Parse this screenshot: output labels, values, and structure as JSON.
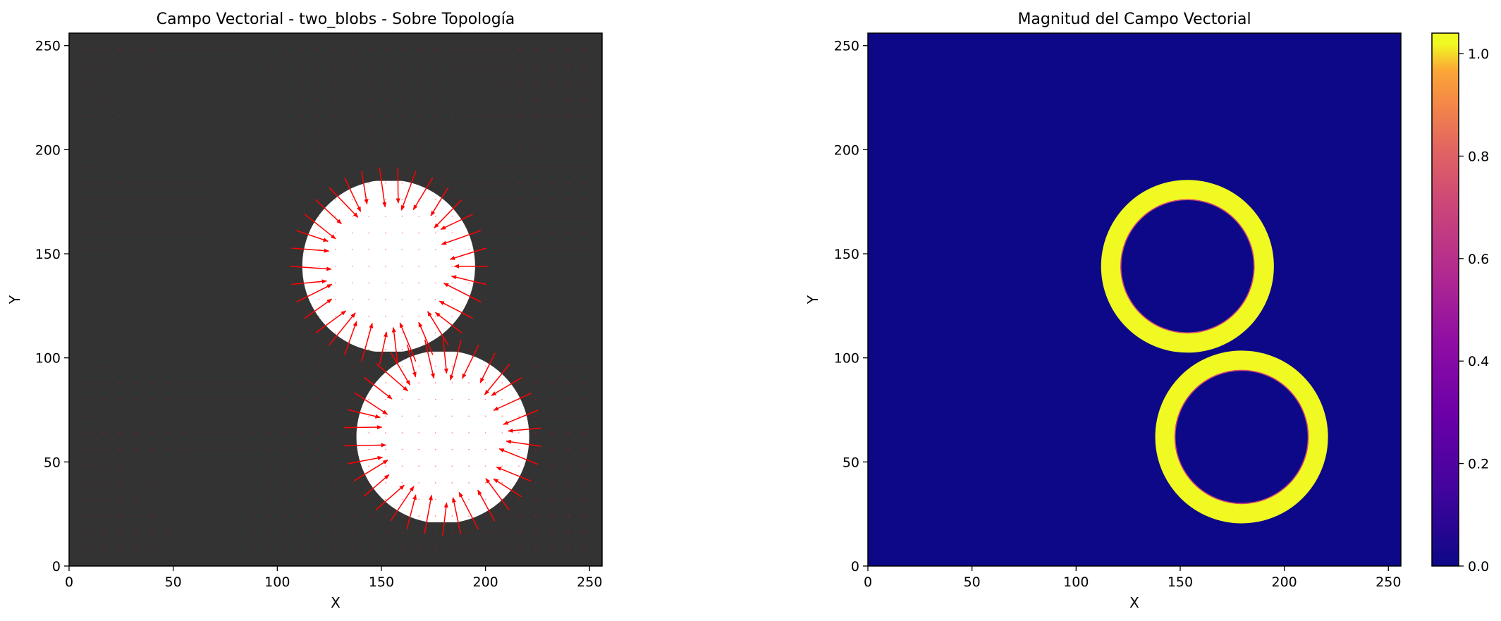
{
  "chart_data": [
    {
      "type": "quiver",
      "title": "Campo Vectorial - two_blobs - Sobre Topología",
      "xlabel": "X",
      "ylabel": "Y",
      "xlim": [
        0,
        256
      ],
      "ylim": [
        0,
        256
      ],
      "xticks": [
        "0",
        "50",
        "100",
        "150",
        "200",
        "250"
      ],
      "yticks": [
        "0",
        "50",
        "100",
        "150",
        "200",
        "250"
      ],
      "background_color": "#333333",
      "arrow_color": "#ff0000",
      "blob_color": "#ffffff",
      "blobs": [
        {
          "cx": 153.5,
          "cy": 144,
          "r": 41.5,
          "flat_top": 185,
          "flat_bottom": 103
        },
        {
          "cx": 179.5,
          "cy": 62,
          "r": 41.5,
          "flat_top": 103,
          "flat_bottom": 21
        }
      ],
      "field": "vectors along each blob boundary point toward the blob center with magnitude ~1; zero elsewhere",
      "grid": false
    },
    {
      "type": "heatmap",
      "title": "Magnitud del Campo Vectorial",
      "xlabel": "X",
      "ylabel": "Y",
      "xlim": [
        0,
        256
      ],
      "ylim": [
        0,
        256
      ],
      "xticks": [
        "0",
        "50",
        "100",
        "150",
        "200",
        "250"
      ],
      "yticks": [
        "0",
        "50",
        "100",
        "150",
        "200",
        "250"
      ],
      "colormap": "plasma",
      "vmin": 0.0,
      "vmax": 1.04,
      "colorbar_ticks": [
        "0.0",
        "0.2",
        "0.4",
        "0.6",
        "0.8",
        "1.0"
      ],
      "rings": [
        {
          "cx": 153.5,
          "cy": 144,
          "outer_r": 41.5,
          "inner_r": 32,
          "value": 1.0
        },
        {
          "cx": 179.5,
          "cy": 62,
          "outer_r": 41.5,
          "inner_r": 32,
          "value": 1.0
        }
      ],
      "background_value": 0.0,
      "grid": false
    }
  ]
}
